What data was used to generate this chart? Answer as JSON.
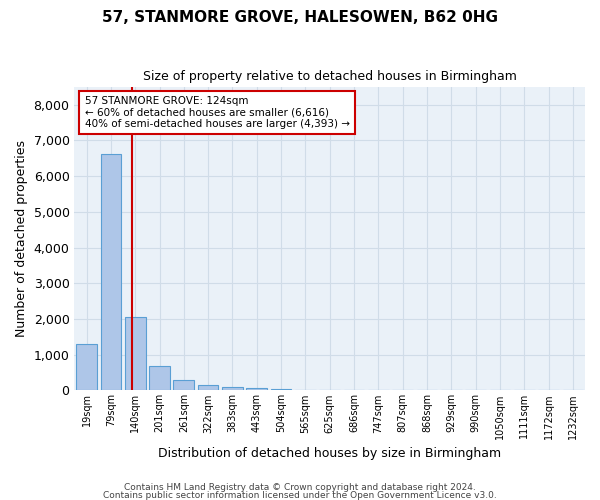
{
  "title": "57, STANMORE GROVE, HALESOWEN, B62 0HG",
  "subtitle": "Size of property relative to detached houses in Birmingham",
  "xlabel": "Distribution of detached houses by size in Birmingham",
  "ylabel": "Number of detached properties",
  "footer1": "Contains HM Land Registry data © Crown copyright and database right 2024.",
  "footer2": "Contains public sector information licensed under the Open Government Licence v3.0.",
  "bin_labels": [
    "19sqm",
    "79sqm",
    "140sqm",
    "201sqm",
    "261sqm",
    "322sqm",
    "383sqm",
    "443sqm",
    "504sqm",
    "565sqm",
    "625sqm",
    "686sqm",
    "747sqm",
    "807sqm",
    "868sqm",
    "929sqm",
    "990sqm",
    "1050sqm",
    "1111sqm",
    "1172sqm",
    "1232sqm"
  ],
  "bar_values": [
    1300,
    6616,
    2060,
    680,
    280,
    140,
    90,
    60,
    50,
    0,
    0,
    0,
    0,
    0,
    0,
    0,
    0,
    0,
    0,
    0,
    0
  ],
  "bar_color": "#aec6e8",
  "bar_edge_color": "#5a9fd4",
  "grid_color": "#d0dce8",
  "background_color": "#eaf1f8",
  "red_line_x": 1.85,
  "annotation_text": "57 STANMORE GROVE: 124sqm\n← 60% of detached houses are smaller (6,616)\n40% of semi-detached houses are larger (4,393) →",
  "annotation_box_color": "#ffffff",
  "annotation_border_color": "#cc0000",
  "ylim": [
    0,
    8500
  ],
  "yticks": [
    0,
    1000,
    2000,
    3000,
    4000,
    5000,
    6000,
    7000,
    8000
  ]
}
